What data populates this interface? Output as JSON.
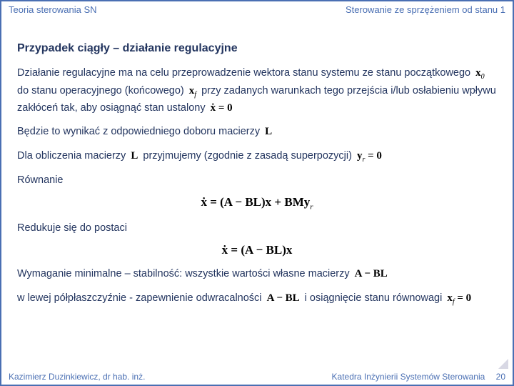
{
  "header": {
    "left": "Teoria sterowania SN",
    "right": "Sterowanie ze sprzężeniem od stanu 1"
  },
  "title": "Przypadek ciągły – działanie regulacyjne",
  "p1a": "Działanie regulacyjne ma na celu przeprowadzenie wektora stanu systemu ze stanu początkowego ",
  "eq_x0": "x",
  "eq_x0_sub": "0",
  "p1b": " do stanu operacyjnego (końcowego) ",
  "eq_xf": "x",
  "eq_xf_sub": "f",
  "p1c": " przy zadanych warunkach tego przejścia i/lub osłabieniu wpływu zakłóceń tak, aby osiągnąć stan ustalony ",
  "eq_xdot0": "ẋ = 0",
  "p2a": "Będzie to wynikać z odpowiedniego doboru macierzy ",
  "eq_L": "L",
  "p3a": "Dla obliczenia macierzy ",
  "p3b": " przyjmujemy (zgodnie z zasadą superpozycji) ",
  "eq_yr0": "y",
  "eq_yr0_sub": "r",
  "eq_yr0_tail": " = 0",
  "label_eq": "Równanie",
  "eq_block1": "ẋ = (A − BL)x + BMy",
  "eq_block1_sub": "r",
  "label_reduce": "Redukuje się do postaci",
  "eq_block2": "ẋ = (A − BL)x",
  "p4a": "Wymaganie minimalne – stabilność: wszystkie wartości własne macierzy ",
  "eq_ABL": "A − BL",
  "p5a": "w lewej półpłaszczyźnie - zapewnienie odwracalności ",
  "p5b": " i osiągnięcie stanu równowagi ",
  "eq_xf0": "x",
  "eq_xf0_sub": "f",
  "eq_xf0_tail": " = 0",
  "footer": {
    "left": "Kazimierz Duzinkiewicz, dr hab. inż.",
    "right": "Katedra Inżynierii Systemów Sterowania",
    "page": "20"
  },
  "colors": {
    "border": "#4a6fb3",
    "text_blue": "#4a6fb3",
    "text_dark": "#23355f"
  }
}
